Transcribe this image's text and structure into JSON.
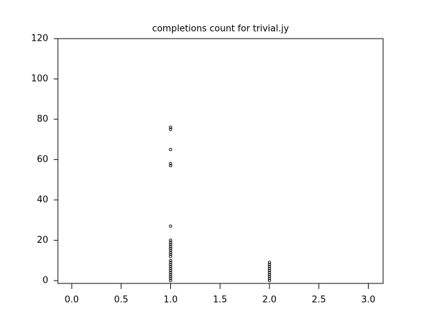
{
  "chart_data": {
    "type": "scatter",
    "title": "completions count for trivial.jy",
    "x": [
      1,
      1,
      1,
      1,
      1,
      1,
      1,
      1,
      1,
      1,
      1,
      1,
      1,
      1,
      1,
      1,
      1,
      1,
      1,
      1,
      1,
      1,
      1,
      1,
      1,
      1,
      2,
      2,
      2,
      2,
      2,
      2,
      2,
      2,
      2,
      2
    ],
    "values": [
      76,
      75,
      65,
      58,
      57,
      27,
      20,
      19,
      18,
      17,
      16,
      15,
      14,
      13,
      12,
      10,
      9,
      8,
      7,
      6,
      5,
      4,
      3,
      2,
      1,
      0,
      9,
      8,
      7,
      6,
      5,
      4,
      3,
      2,
      1,
      0
    ],
    "color": "#000000",
    "xlim": [
      -0.14,
      3.15
    ],
    "ylim": [
      -1.4,
      120
    ],
    "xticks": [
      {
        "value": 0,
        "label": "0.0"
      },
      {
        "value": 0.5,
        "label": "0.5"
      },
      {
        "value": 1,
        "label": "1.0"
      },
      {
        "value": 1.5,
        "label": "1.5"
      },
      {
        "value": 2,
        "label": "2.0"
      },
      {
        "value": 2.5,
        "label": "2.5"
      },
      {
        "value": 3,
        "label": "3.0"
      }
    ],
    "yticks": [
      0,
      20,
      40,
      60,
      80,
      100,
      120
    ]
  }
}
